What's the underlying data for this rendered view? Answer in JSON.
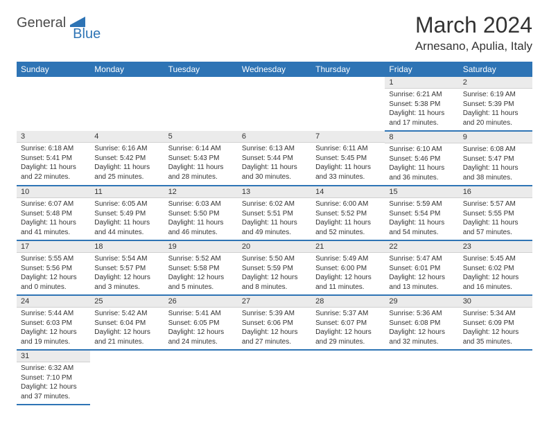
{
  "brand": {
    "part1": "General",
    "part2": "Blue"
  },
  "title": "March 2024",
  "location": "Arnesano, Apulia, Italy",
  "colors": {
    "header_bg": "#2e74b5",
    "header_fg": "#ffffff",
    "daynum_bg": "#ebebeb",
    "sep": "#2e74b5"
  },
  "day_headers": [
    "Sunday",
    "Monday",
    "Tuesday",
    "Wednesday",
    "Thursday",
    "Friday",
    "Saturday"
  ],
  "weeks": [
    [
      null,
      null,
      null,
      null,
      null,
      {
        "n": "1",
        "sr": "Sunrise: 6:21 AM",
        "ss": "Sunset: 5:38 PM",
        "dl": "Daylight: 11 hours and 17 minutes."
      },
      {
        "n": "2",
        "sr": "Sunrise: 6:19 AM",
        "ss": "Sunset: 5:39 PM",
        "dl": "Daylight: 11 hours and 20 minutes."
      }
    ],
    [
      {
        "n": "3",
        "sr": "Sunrise: 6:18 AM",
        "ss": "Sunset: 5:41 PM",
        "dl": "Daylight: 11 hours and 22 minutes."
      },
      {
        "n": "4",
        "sr": "Sunrise: 6:16 AM",
        "ss": "Sunset: 5:42 PM",
        "dl": "Daylight: 11 hours and 25 minutes."
      },
      {
        "n": "5",
        "sr": "Sunrise: 6:14 AM",
        "ss": "Sunset: 5:43 PM",
        "dl": "Daylight: 11 hours and 28 minutes."
      },
      {
        "n": "6",
        "sr": "Sunrise: 6:13 AM",
        "ss": "Sunset: 5:44 PM",
        "dl": "Daylight: 11 hours and 30 minutes."
      },
      {
        "n": "7",
        "sr": "Sunrise: 6:11 AM",
        "ss": "Sunset: 5:45 PM",
        "dl": "Daylight: 11 hours and 33 minutes."
      },
      {
        "n": "8",
        "sr": "Sunrise: 6:10 AM",
        "ss": "Sunset: 5:46 PM",
        "dl": "Daylight: 11 hours and 36 minutes."
      },
      {
        "n": "9",
        "sr": "Sunrise: 6:08 AM",
        "ss": "Sunset: 5:47 PM",
        "dl": "Daylight: 11 hours and 38 minutes."
      }
    ],
    [
      {
        "n": "10",
        "sr": "Sunrise: 6:07 AM",
        "ss": "Sunset: 5:48 PM",
        "dl": "Daylight: 11 hours and 41 minutes."
      },
      {
        "n": "11",
        "sr": "Sunrise: 6:05 AM",
        "ss": "Sunset: 5:49 PM",
        "dl": "Daylight: 11 hours and 44 minutes."
      },
      {
        "n": "12",
        "sr": "Sunrise: 6:03 AM",
        "ss": "Sunset: 5:50 PM",
        "dl": "Daylight: 11 hours and 46 minutes."
      },
      {
        "n": "13",
        "sr": "Sunrise: 6:02 AM",
        "ss": "Sunset: 5:51 PM",
        "dl": "Daylight: 11 hours and 49 minutes."
      },
      {
        "n": "14",
        "sr": "Sunrise: 6:00 AM",
        "ss": "Sunset: 5:52 PM",
        "dl": "Daylight: 11 hours and 52 minutes."
      },
      {
        "n": "15",
        "sr": "Sunrise: 5:59 AM",
        "ss": "Sunset: 5:54 PM",
        "dl": "Daylight: 11 hours and 54 minutes."
      },
      {
        "n": "16",
        "sr": "Sunrise: 5:57 AM",
        "ss": "Sunset: 5:55 PM",
        "dl": "Daylight: 11 hours and 57 minutes."
      }
    ],
    [
      {
        "n": "17",
        "sr": "Sunrise: 5:55 AM",
        "ss": "Sunset: 5:56 PM",
        "dl": "Daylight: 12 hours and 0 minutes."
      },
      {
        "n": "18",
        "sr": "Sunrise: 5:54 AM",
        "ss": "Sunset: 5:57 PM",
        "dl": "Daylight: 12 hours and 3 minutes."
      },
      {
        "n": "19",
        "sr": "Sunrise: 5:52 AM",
        "ss": "Sunset: 5:58 PM",
        "dl": "Daylight: 12 hours and 5 minutes."
      },
      {
        "n": "20",
        "sr": "Sunrise: 5:50 AM",
        "ss": "Sunset: 5:59 PM",
        "dl": "Daylight: 12 hours and 8 minutes."
      },
      {
        "n": "21",
        "sr": "Sunrise: 5:49 AM",
        "ss": "Sunset: 6:00 PM",
        "dl": "Daylight: 12 hours and 11 minutes."
      },
      {
        "n": "22",
        "sr": "Sunrise: 5:47 AM",
        "ss": "Sunset: 6:01 PM",
        "dl": "Daylight: 12 hours and 13 minutes."
      },
      {
        "n": "23",
        "sr": "Sunrise: 5:45 AM",
        "ss": "Sunset: 6:02 PM",
        "dl": "Daylight: 12 hours and 16 minutes."
      }
    ],
    [
      {
        "n": "24",
        "sr": "Sunrise: 5:44 AM",
        "ss": "Sunset: 6:03 PM",
        "dl": "Daylight: 12 hours and 19 minutes."
      },
      {
        "n": "25",
        "sr": "Sunrise: 5:42 AM",
        "ss": "Sunset: 6:04 PM",
        "dl": "Daylight: 12 hours and 21 minutes."
      },
      {
        "n": "26",
        "sr": "Sunrise: 5:41 AM",
        "ss": "Sunset: 6:05 PM",
        "dl": "Daylight: 12 hours and 24 minutes."
      },
      {
        "n": "27",
        "sr": "Sunrise: 5:39 AM",
        "ss": "Sunset: 6:06 PM",
        "dl": "Daylight: 12 hours and 27 minutes."
      },
      {
        "n": "28",
        "sr": "Sunrise: 5:37 AM",
        "ss": "Sunset: 6:07 PM",
        "dl": "Daylight: 12 hours and 29 minutes."
      },
      {
        "n": "29",
        "sr": "Sunrise: 5:36 AM",
        "ss": "Sunset: 6:08 PM",
        "dl": "Daylight: 12 hours and 32 minutes."
      },
      {
        "n": "30",
        "sr": "Sunrise: 5:34 AM",
        "ss": "Sunset: 6:09 PM",
        "dl": "Daylight: 12 hours and 35 minutes."
      }
    ],
    [
      {
        "n": "31",
        "sr": "Sunrise: 6:32 AM",
        "ss": "Sunset: 7:10 PM",
        "dl": "Daylight: 12 hours and 37 minutes."
      },
      null,
      null,
      null,
      null,
      null,
      null
    ]
  ]
}
